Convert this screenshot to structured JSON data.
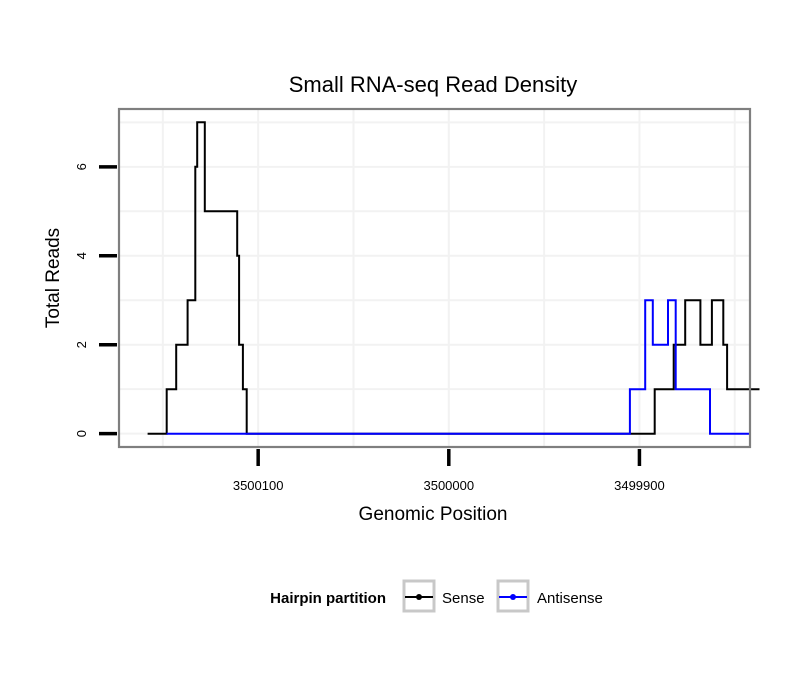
{
  "chart_data": {
    "type": "line",
    "title": "Small RNA-seq Read Density",
    "xlabel": "Genomic Position",
    "ylabel": "Total Reads",
    "x_reversed": true,
    "xlim": [
      3500173,
      3499842
    ],
    "ylim": [
      -0.3,
      7.3
    ],
    "x_ticks": [
      3500100,
      3500000,
      3499900
    ],
    "x_tick_labels": [
      "3500100",
      "3500000",
      "3499900"
    ],
    "y_ticks": [
      0,
      2,
      4,
      6
    ],
    "y_tick_labels": [
      "0",
      "2",
      "4",
      "6"
    ],
    "grid": true,
    "legend": {
      "title": "Hairpin partition",
      "position": "bottom",
      "entries": [
        "Sense",
        "Antisense"
      ]
    },
    "series": [
      {
        "name": "Sense",
        "color": "#000000",
        "x": [
          3500158,
          3500148,
          3500148,
          3500143,
          3500143,
          3500137,
          3500137,
          3500133,
          3500133,
          3500132,
          3500132,
          3500128,
          3500128,
          3500122,
          3500122,
          3500111,
          3500111,
          3500110,
          3500110,
          3500108,
          3500108,
          3500106,
          3500106,
          3500104,
          3500104,
          3499892,
          3499892,
          3499882,
          3499882,
          3499876,
          3499876,
          3499872,
          3499872,
          3499868,
          3499868,
          3499862,
          3499862,
          3499856,
          3499856,
          3499855,
          3499855,
          3499854,
          3499854,
          3499850,
          3499850,
          3499837
        ],
        "y": [
          0,
          0,
          1,
          1,
          2,
          2,
          3,
          3,
          6,
          6,
          7,
          7,
          5,
          5,
          5,
          5,
          4,
          4,
          2,
          2,
          1,
          1,
          0,
          0,
          0,
          0,
          1,
          1,
          2,
          2,
          3,
          3,
          3,
          3,
          2,
          2,
          3,
          3,
          2,
          2,
          2,
          2,
          1,
          1,
          1,
          1
        ]
      },
      {
        "name": "Antisense",
        "color": "#0000ff",
        "x": [
          3500148,
          3499905,
          3499905,
          3499901,
          3499901,
          3499899,
          3499899,
          3499897,
          3499897,
          3499893,
          3499893,
          3499889,
          3499889,
          3499885,
          3499885,
          3499883,
          3499883,
          3499881,
          3499881,
          3499873,
          3499873,
          3499863,
          3499863,
          3499852,
          3499852,
          3499842
        ],
        "y": [
          0,
          0,
          1,
          1,
          1,
          1,
          1,
          1,
          3,
          3,
          2,
          2,
          2,
          2,
          3,
          3,
          3,
          3,
          1,
          1,
          1,
          1,
          0,
          0,
          0,
          0
        ]
      }
    ]
  }
}
